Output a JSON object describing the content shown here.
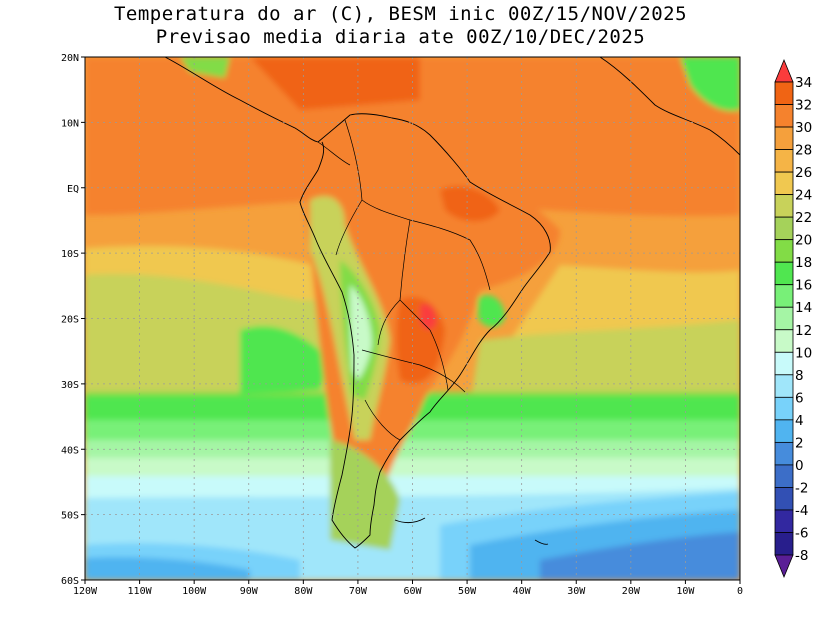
{
  "title": {
    "line1": "Temperatura do ar (C), BESM inic 00Z/15/NOV/2025",
    "line2": "Previsao media diaria ate 00Z/10/DEC/2025"
  },
  "axes": {
    "lat_labels": [
      "20N",
      "10N",
      "EQ",
      "10S",
      "20S",
      "30S",
      "40S",
      "50S",
      "60S"
    ],
    "lon_labels": [
      "120W",
      "110W",
      "100W",
      "90W",
      "80W",
      "70W",
      "60W",
      "50W",
      "40W",
      "30W",
      "20W",
      "10W",
      "0"
    ]
  },
  "colorbar": {
    "labels": [
      "34",
      "32",
      "30",
      "28",
      "26",
      "24",
      "22",
      "20",
      "18",
      "16",
      "14",
      "12",
      "10",
      "8",
      "6",
      "4",
      "2",
      "0",
      "-2",
      "-4",
      "-6",
      "-8"
    ],
    "colors": [
      "#fa3c3c",
      "#f06414",
      "#f5822d",
      "#f5a03c",
      "#f5b446",
      "#f0c850",
      "#c8d25a",
      "#a5d25a",
      "#82dc46",
      "#50e650",
      "#78f078",
      "#a5f5a5",
      "#c8fac8",
      "#c8fafa",
      "#a0e6fa",
      "#78d2fa",
      "#50b4f0",
      "#468cdc",
      "#3c6ec8",
      "#3250b4",
      "#3228a0",
      "#281e8c",
      "#5a1e96"
    ]
  }
}
